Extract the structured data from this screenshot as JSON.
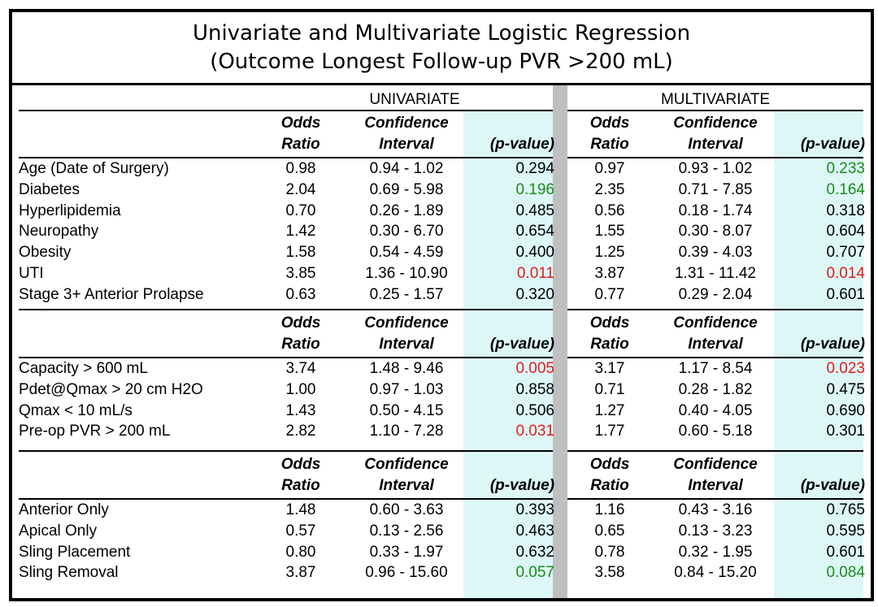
{
  "title": {
    "line1": "Univariate and Multivariate Logistic Regression",
    "line2": "(Outcome Longest Follow-up PVR >200 mL)"
  },
  "sections": {
    "univariate": "UNIVARIATE",
    "multivariate": "MULTIVARIATE"
  },
  "headers": {
    "or_line1": "Odds",
    "or_line2": "Ratio",
    "ci_line1": "Confidence",
    "ci_line2": "Interval",
    "p": "(p-value)"
  },
  "colors": {
    "significant": "#e31a1a",
    "trend": "#1a8c1a",
    "shade": "#ddf7f7",
    "divider": "#bfbfbf"
  },
  "groups": [
    {
      "rows": [
        {
          "label": "Age (Date of Surgery)",
          "u_or": "0.98",
          "u_ci": "0.94 - 1.02",
          "u_p": "0.294",
          "u_pc": "",
          "m_or": "0.97",
          "m_ci": "0.93 - 1.02",
          "m_p": "0.233",
          "m_pc": "green"
        },
        {
          "label": "Diabetes",
          "u_or": "2.04",
          "u_ci": "0.69 - 5.98",
          "u_p": "0.196",
          "u_pc": "green",
          "m_or": "2.35",
          "m_ci": "0.71 - 7.85",
          "m_p": "0.164",
          "m_pc": "green"
        },
        {
          "label": "Hyperlipidemia",
          "u_or": "0.70",
          "u_ci": "0.26 - 1.89",
          "u_p": "0.485",
          "u_pc": "",
          "m_or": "0.56",
          "m_ci": "0.18 - 1.74",
          "m_p": "0.318",
          "m_pc": ""
        },
        {
          "label": "Neuropathy",
          "u_or": "1.42",
          "u_ci": "0.30 - 6.70",
          "u_p": "0.654",
          "u_pc": "",
          "m_or": "1.55",
          "m_ci": "0.30 - 8.07",
          "m_p": "0.604",
          "m_pc": ""
        },
        {
          "label": "Obesity",
          "u_or": "1.58",
          "u_ci": "0.54 - 4.59",
          "u_p": "0.400",
          "u_pc": "",
          "m_or": "1.25",
          "m_ci": "0.39 - 4.03",
          "m_p": "0.707",
          "m_pc": ""
        },
        {
          "label": "UTI",
          "u_or": "3.85",
          "u_ci": "1.36 - 10.90",
          "u_p": "0.011",
          "u_pc": "red",
          "m_or": "3.87",
          "m_ci": "1.31 - 11.42",
          "m_p": "0.014",
          "m_pc": "red"
        },
        {
          "label": "Stage 3+ Anterior Prolapse",
          "u_or": "0.63",
          "u_ci": "0.25 - 1.57",
          "u_p": "0.320",
          "u_pc": "",
          "m_or": "0.77",
          "m_ci": "0.29 - 2.04",
          "m_p": "0.601",
          "m_pc": ""
        }
      ]
    },
    {
      "rows": [
        {
          "label": "Capacity > 600 mL",
          "u_or": "3.74",
          "u_ci": "1.48 - 9.46",
          "u_p": "0.005",
          "u_pc": "red",
          "m_or": "3.17",
          "m_ci": "1.17 - 8.54",
          "m_p": "0.023",
          "m_pc": "red"
        },
        {
          "label": "Pdet@Qmax > 20 cm H2O",
          "u_or": "1.00",
          "u_ci": "0.97 - 1.03",
          "u_p": "0.858",
          "u_pc": "",
          "m_or": "0.71",
          "m_ci": "0.28 - 1.82",
          "m_p": "0.475",
          "m_pc": ""
        },
        {
          "label": "Qmax < 10 mL/s",
          "u_or": "1.43",
          "u_ci": "0.50 - 4.15",
          "u_p": "0.506",
          "u_pc": "",
          "m_or": "1.27",
          "m_ci": "0.40 - 4.05",
          "m_p": "0.690",
          "m_pc": ""
        },
        {
          "label": "Pre-op PVR > 200 mL",
          "u_or": "2.82",
          "u_ci": "1.10 - 7.28",
          "u_p": "0.031",
          "u_pc": "red",
          "m_or": "1.77",
          "m_ci": "0.60 - 5.18",
          "m_p": "0.301",
          "m_pc": ""
        }
      ]
    },
    {
      "rows": [
        {
          "label": "Anterior Only",
          "u_or": "1.48",
          "u_ci": "0.60 - 3.63",
          "u_p": "0.393",
          "u_pc": "",
          "m_or": "1.16",
          "m_ci": "0.43 - 3.16",
          "m_p": "0.765",
          "m_pc": ""
        },
        {
          "label": "Apical Only",
          "u_or": "0.57",
          "u_ci": "0.13 - 2.56",
          "u_p": "0.463",
          "u_pc": "",
          "m_or": "0.65",
          "m_ci": "0.13 - 3.23",
          "m_p": "0.595",
          "m_pc": ""
        },
        {
          "label": "Sling Placement",
          "u_or": "0.80",
          "u_ci": "0.33 - 1.97",
          "u_p": "0.632",
          "u_pc": "",
          "m_or": "0.78",
          "m_ci": "0.32 - 1.95",
          "m_p": "0.601",
          "m_pc": ""
        },
        {
          "label": "Sling Removal",
          "u_or": "3.87",
          "u_ci": "0.96 - 15.60",
          "u_p": "0.057",
          "u_pc": "green",
          "m_or": "3.58",
          "m_ci": "0.84 - 15.20",
          "m_p": "0.084",
          "m_pc": "green"
        }
      ]
    }
  ]
}
